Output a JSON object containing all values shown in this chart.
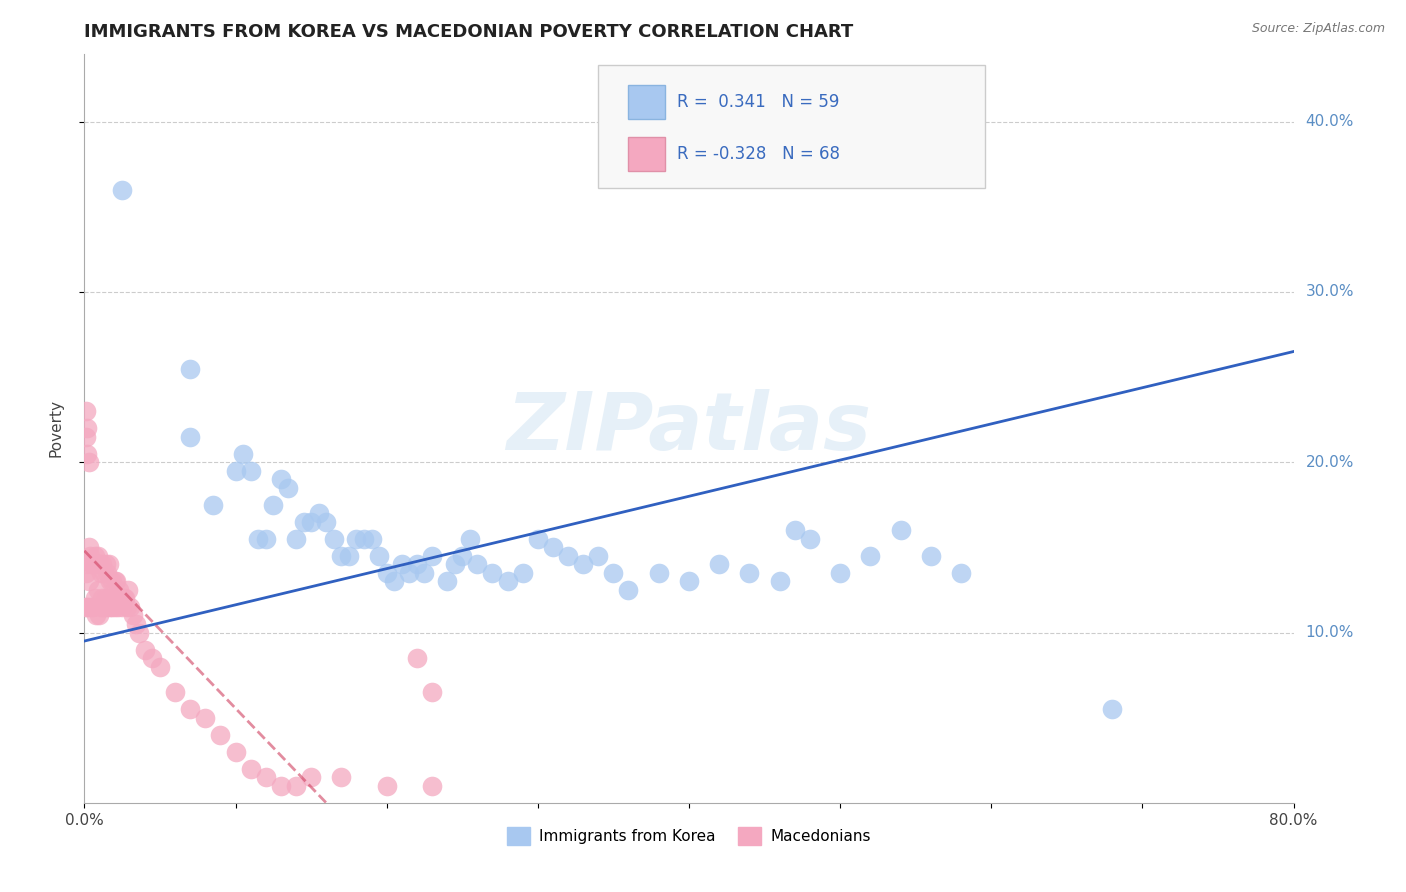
{
  "title": "IMMIGRANTS FROM KOREA VS MACEDONIAN POVERTY CORRELATION CHART",
  "source": "Source: ZipAtlas.com",
  "ylabel": "Poverty",
  "xlim": [
    0,
    0.8
  ],
  "ylim": [
    0,
    0.44
  ],
  "xticks": [
    0.0,
    0.1,
    0.2,
    0.3,
    0.4,
    0.5,
    0.6,
    0.7,
    0.8
  ],
  "xticklabels_show": [
    "0.0%",
    "",
    "",
    "",
    "",
    "",
    "",
    "",
    "80.0%"
  ],
  "ytick_positions": [
    0.1,
    0.2,
    0.3,
    0.4
  ],
  "ytick_labels": [
    "10.0%",
    "20.0%",
    "30.0%",
    "40.0%"
  ],
  "blue_color": "#a8c8f0",
  "pink_color": "#f4a8c0",
  "blue_R": 0.341,
  "blue_N": 59,
  "pink_R": -0.328,
  "pink_N": 68,
  "legend_label_blue": "Immigrants from Korea",
  "legend_label_pink": "Macedonians",
  "watermark": "ZIPatlas",
  "blue_line_color": "#3060c0",
  "pink_line_color": "#d04060",
  "blue_line_x0": 0.0,
  "blue_line_y0": 0.095,
  "blue_line_x1": 0.8,
  "blue_line_y1": 0.265,
  "pink_line_x0": 0.0,
  "pink_line_y0": 0.148,
  "pink_line_x1": 0.16,
  "pink_line_y1": 0.0,
  "grid_color": "#cccccc",
  "background_color": "#ffffff",
  "title_fontsize": 13,
  "axis_label_fontsize": 11,
  "tick_fontsize": 11,
  "legend_fontsize": 12,
  "blue_scatter_x": [
    0.025,
    0.07,
    0.07,
    0.085,
    0.1,
    0.105,
    0.11,
    0.115,
    0.12,
    0.125,
    0.13,
    0.135,
    0.14,
    0.145,
    0.15,
    0.155,
    0.16,
    0.165,
    0.17,
    0.175,
    0.18,
    0.185,
    0.19,
    0.195,
    0.2,
    0.205,
    0.21,
    0.215,
    0.22,
    0.225,
    0.23,
    0.24,
    0.245,
    0.25,
    0.255,
    0.26,
    0.27,
    0.28,
    0.29,
    0.3,
    0.31,
    0.32,
    0.33,
    0.34,
    0.35,
    0.36,
    0.38,
    0.4,
    0.42,
    0.44,
    0.46,
    0.47,
    0.48,
    0.5,
    0.52,
    0.54,
    0.56,
    0.58,
    0.68
  ],
  "blue_scatter_y": [
    0.36,
    0.255,
    0.215,
    0.175,
    0.195,
    0.205,
    0.195,
    0.155,
    0.155,
    0.175,
    0.19,
    0.185,
    0.155,
    0.165,
    0.165,
    0.17,
    0.165,
    0.155,
    0.145,
    0.145,
    0.155,
    0.155,
    0.155,
    0.145,
    0.135,
    0.13,
    0.14,
    0.135,
    0.14,
    0.135,
    0.145,
    0.13,
    0.14,
    0.145,
    0.155,
    0.14,
    0.135,
    0.13,
    0.135,
    0.155,
    0.15,
    0.145,
    0.14,
    0.145,
    0.135,
    0.125,
    0.135,
    0.13,
    0.14,
    0.135,
    0.13,
    0.16,
    0.155,
    0.135,
    0.145,
    0.16,
    0.145,
    0.135,
    0.055
  ],
  "pink_scatter_x": [
    0.001,
    0.001,
    0.002,
    0.002,
    0.003,
    0.003,
    0.004,
    0.004,
    0.005,
    0.005,
    0.006,
    0.006,
    0.007,
    0.007,
    0.008,
    0.008,
    0.009,
    0.009,
    0.01,
    0.01,
    0.011,
    0.011,
    0.012,
    0.012,
    0.013,
    0.013,
    0.014,
    0.014,
    0.015,
    0.015,
    0.016,
    0.016,
    0.017,
    0.017,
    0.018,
    0.018,
    0.019,
    0.02,
    0.02,
    0.021,
    0.022,
    0.023,
    0.024,
    0.025,
    0.026,
    0.027,
    0.028,
    0.029,
    0.03,
    0.032,
    0.034,
    0.036,
    0.04,
    0.045,
    0.05,
    0.06,
    0.07,
    0.08,
    0.09,
    0.1,
    0.11,
    0.12,
    0.13,
    0.14,
    0.15,
    0.17,
    0.2,
    0.23
  ],
  "pink_scatter_y": [
    0.115,
    0.135,
    0.115,
    0.14,
    0.13,
    0.15,
    0.115,
    0.145,
    0.115,
    0.14,
    0.115,
    0.14,
    0.12,
    0.145,
    0.11,
    0.14,
    0.125,
    0.145,
    0.11,
    0.14,
    0.115,
    0.135,
    0.12,
    0.14,
    0.115,
    0.135,
    0.12,
    0.14,
    0.115,
    0.135,
    0.12,
    0.14,
    0.115,
    0.13,
    0.115,
    0.13,
    0.12,
    0.115,
    0.13,
    0.13,
    0.115,
    0.125,
    0.12,
    0.115,
    0.12,
    0.12,
    0.115,
    0.125,
    0.115,
    0.11,
    0.105,
    0.1,
    0.09,
    0.085,
    0.08,
    0.065,
    0.055,
    0.05,
    0.04,
    0.03,
    0.02,
    0.015,
    0.01,
    0.01,
    0.015,
    0.015,
    0.01,
    0.01
  ],
  "pink_extra_x": [
    0.001,
    0.001,
    0.002,
    0.002,
    0.003,
    0.22,
    0.23
  ],
  "pink_extra_y": [
    0.215,
    0.23,
    0.205,
    0.22,
    0.2,
    0.085,
    0.065
  ]
}
